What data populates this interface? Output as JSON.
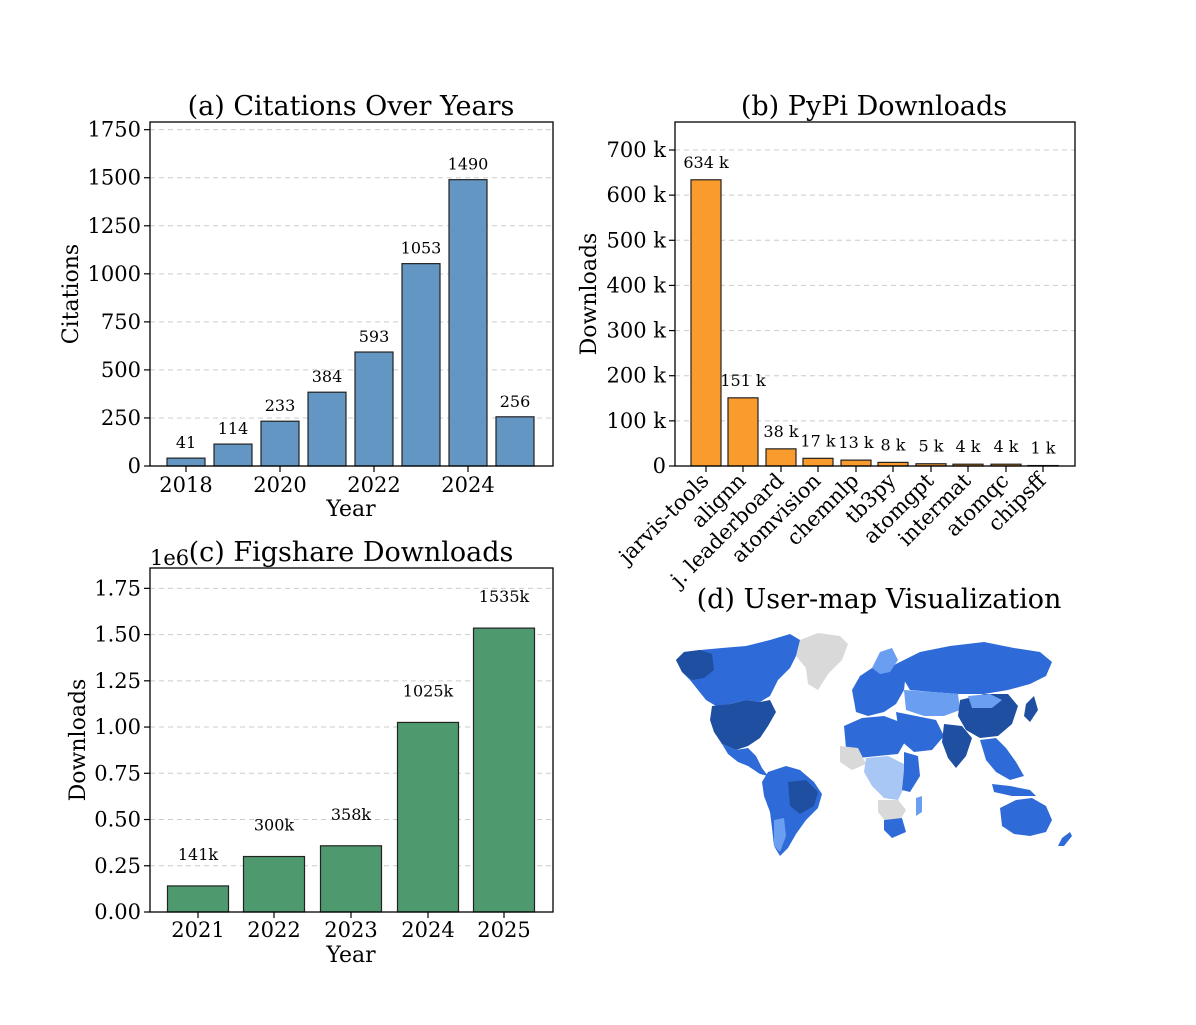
{
  "chart_data": [
    {
      "id": "a",
      "type": "bar",
      "title": "(a) Citations Over Years",
      "xlabel": "Year",
      "ylabel": "Citations",
      "categories": [
        "2018",
        "2019",
        "2020",
        "2021",
        "2022",
        "2023",
        "2024",
        "2025"
      ],
      "values": [
        41,
        114,
        233,
        384,
        593,
        1053,
        1490,
        256
      ],
      "data_labels": [
        "41",
        "114",
        "233",
        "384",
        "593",
        "1053",
        "1490",
        "256"
      ],
      "xticks": [
        "2018",
        "2020",
        "2022",
        "2024"
      ],
      "yticks": [
        "0",
        "250",
        "500",
        "750",
        "1000",
        "1250",
        "1500",
        "1750"
      ],
      "ylim": [
        0,
        1790
      ],
      "color": "#6496c3",
      "grid": true
    },
    {
      "id": "b",
      "type": "bar",
      "title": "(b) PyPi Downloads",
      "xlabel": "",
      "ylabel": "Downloads",
      "categories": [
        "jarvis-tools",
        "alignn",
        "j. leaderboard",
        "atomvision",
        "chemnlp",
        "tb3py",
        "atomgpt",
        "intermat",
        "atomqc",
        "chipsff"
      ],
      "values": [
        634,
        151,
        38,
        17,
        13,
        8,
        5,
        4,
        4,
        1
      ],
      "data_labels": [
        "634 k",
        "151 k",
        "38 k",
        "17 k",
        "13 k",
        "8 k",
        "5 k",
        "4 k",
        "4 k",
        "1 k"
      ],
      "yticks": [
        "0",
        "100 k",
        "200 k",
        "300 k",
        "400 k",
        "500 k",
        "600 k",
        "700 k"
      ],
      "ylim": [
        0,
        762
      ],
      "color": "#fa9c2d",
      "grid": true
    },
    {
      "id": "c",
      "type": "bar",
      "title": "(c) Figshare Downloads",
      "xlabel": "Year",
      "ylabel": "Downloads",
      "offset_label": "1e6",
      "categories": [
        "2021",
        "2022",
        "2023",
        "2024",
        "2025"
      ],
      "values": [
        0.141,
        0.3,
        0.358,
        1.025,
        1.535
      ],
      "data_labels": [
        "141k",
        "300k",
        "358k",
        "1025k",
        "1535k"
      ],
      "yticks": [
        "0.00",
        "0.25",
        "0.50",
        "0.75",
        "1.00",
        "1.25",
        "1.50",
        "1.75"
      ],
      "ylim": [
        0,
        1.86
      ],
      "color": "#4e9a6e",
      "grid": true
    }
  ],
  "map_panel": {
    "title": "(d) User-map Visualization",
    "colors": {
      "dark": "#1f4fa0",
      "mid": "#2e6bd8",
      "light": "#6a9ef0",
      "pale": "#a9c7f5",
      "none": "#d9d9d9"
    }
  }
}
